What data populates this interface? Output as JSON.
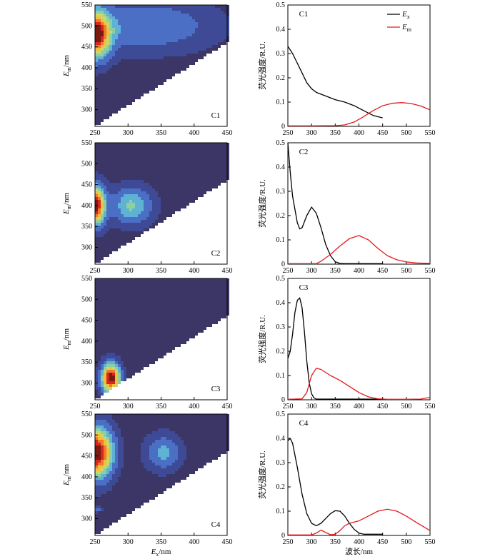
{
  "chart_data": [
    {
      "type": "heatmap",
      "panel": "C1",
      "xlabel": "Ex/nm",
      "ylabel": "Em/nm",
      "xlim": [
        250,
        450
      ],
      "ylim": [
        260,
        550
      ],
      "xticks": [
        250,
        300,
        350,
        400,
        450
      ],
      "yticks": [
        300,
        350,
        400,
        450,
        500,
        550
      ],
      "rayleigh_cutoff": "Em < Ex + 10 (white region)",
      "peaks": [
        {
          "ex": 250,
          "em": 480,
          "level": 1.0,
          "ex_width": 22,
          "em_width": 52
        },
        {
          "ex": 330,
          "em": 500,
          "level": 0.22,
          "ex_width": 90,
          "em_width": 55
        }
      ]
    },
    {
      "type": "line",
      "panel": "C1",
      "xlim": [
        250,
        550
      ],
      "ylim": [
        0,
        0.5
      ],
      "xticks": [
        250,
        300,
        350,
        400,
        450,
        500,
        550
      ],
      "yticks": [
        0,
        0.1,
        0.2,
        0.3,
        0.4,
        0.5
      ],
      "ylabel": "荧光强度/R.U.",
      "legend_position": "top-right",
      "series": [
        {
          "name": "Ex",
          "color": "#000000",
          "x": [
            250,
            260,
            270,
            280,
            290,
            300,
            310,
            330,
            350,
            370,
            390,
            410,
            430,
            450
          ],
          "y": [
            0.33,
            0.3,
            0.26,
            0.22,
            0.18,
            0.155,
            0.14,
            0.125,
            0.11,
            0.1,
            0.085,
            0.065,
            0.045,
            0.035
          ]
        },
        {
          "name": "Em",
          "color": "#e31a1c",
          "x": [
            250,
            300,
            350,
            370,
            390,
            410,
            430,
            450,
            470,
            490,
            510,
            530,
            550
          ],
          "y": [
            0.002,
            0.002,
            0.003,
            0.006,
            0.018,
            0.04,
            0.065,
            0.085,
            0.095,
            0.098,
            0.094,
            0.084,
            0.068
          ]
        }
      ]
    },
    {
      "type": "heatmap",
      "panel": "C2",
      "xlim": [
        250,
        450
      ],
      "ylim": [
        260,
        550
      ],
      "xticks": [
        250,
        300,
        350,
        400,
        450
      ],
      "yticks": [
        300,
        350,
        400,
        450,
        500,
        550
      ],
      "ylabel": "Em/nm",
      "peaks": [
        {
          "ex": 250,
          "em": 400,
          "level": 1.0,
          "ex_width": 14,
          "em_width": 42
        },
        {
          "ex": 305,
          "em": 400,
          "level": 0.36,
          "ex_width": 28,
          "em_width": 40
        }
      ]
    },
    {
      "type": "line",
      "panel": "C2",
      "xlim": [
        250,
        550
      ],
      "ylim": [
        0,
        0.5
      ],
      "xticks": [
        250,
        300,
        350,
        400,
        450,
        500,
        550
      ],
      "yticks": [
        0,
        0.1,
        0.2,
        0.3,
        0.4,
        0.5
      ],
      "ylabel": "荧光强度/R.U.",
      "series": [
        {
          "name": "Ex",
          "color": "#000000",
          "x": [
            250,
            255,
            260,
            270,
            275,
            280,
            290,
            300,
            310,
            320,
            330,
            340,
            350,
            360,
            370,
            380,
            450
          ],
          "y": [
            0.5,
            0.38,
            0.28,
            0.17,
            0.145,
            0.15,
            0.2,
            0.235,
            0.21,
            0.15,
            0.08,
            0.035,
            0.01,
            0.003,
            0.002,
            0.002,
            0.002
          ]
        },
        {
          "name": "Em",
          "color": "#e31a1c",
          "x": [
            250,
            310,
            320,
            340,
            360,
            380,
            400,
            420,
            440,
            460,
            480,
            500,
            520,
            550
          ],
          "y": [
            0.002,
            0.002,
            0.012,
            0.04,
            0.075,
            0.105,
            0.118,
            0.1,
            0.065,
            0.035,
            0.018,
            0.009,
            0.005,
            0.003
          ]
        }
      ]
    },
    {
      "type": "heatmap",
      "panel": "C3",
      "xlim": [
        250,
        450
      ],
      "ylim": [
        260,
        550
      ],
      "xticks": [
        250,
        300,
        350,
        400,
        450
      ],
      "yticks": [
        300,
        350,
        400,
        450,
        500,
        550
      ],
      "ylabel": "Em/nm",
      "peaks": [
        {
          "ex": 274,
          "em": 312,
          "level": 1.0,
          "ex_width": 13,
          "em_width": 32
        }
      ]
    },
    {
      "type": "line",
      "panel": "C3",
      "xlim": [
        250,
        550
      ],
      "ylim": [
        0,
        0.5
      ],
      "xticks": [
        250,
        300,
        350,
        400,
        450,
        500,
        550
      ],
      "yticks": [
        0,
        0.1,
        0.2,
        0.3,
        0.4,
        0.5
      ],
      "ylabel": "荧光强度/R.U.",
      "series": [
        {
          "name": "Ex",
          "color": "#000000",
          "x": [
            250,
            255,
            260,
            265,
            270,
            275,
            280,
            285,
            290,
            295,
            300,
            305,
            310,
            450
          ],
          "y": [
            0.17,
            0.2,
            0.27,
            0.36,
            0.41,
            0.42,
            0.38,
            0.28,
            0.16,
            0.07,
            0.025,
            0.008,
            0.003,
            0.003
          ]
        },
        {
          "name": "Em",
          "color": "#e31a1c",
          "x": [
            250,
            280,
            290,
            300,
            310,
            320,
            340,
            360,
            380,
            400,
            420,
            440,
            460,
            500,
            530,
            550
          ],
          "y": [
            0.002,
            0.004,
            0.03,
            0.1,
            0.13,
            0.125,
            0.1,
            0.08,
            0.055,
            0.03,
            0.012,
            0.004,
            0.002,
            0.002,
            0.003,
            0.01
          ]
        }
      ]
    },
    {
      "type": "heatmap",
      "panel": "C4",
      "xlim": [
        250,
        450
      ],
      "ylim": [
        260,
        550
      ],
      "xticks": [
        250,
        300,
        350,
        400,
        450
      ],
      "yticks": [
        300,
        350,
        400,
        450,
        500,
        550
      ],
      "xlabel": "Ex/nm",
      "ylabel": "Em/nm",
      "peaks": [
        {
          "ex": 253,
          "em": 458,
          "level": 1.0,
          "ex_width": 22,
          "em_width": 55
        },
        {
          "ex": 353,
          "em": 458,
          "level": 0.26,
          "ex_width": 24,
          "em_width": 38
        },
        {
          "ex": 252,
          "em": 322,
          "level": 0.16,
          "ex_width": 10,
          "em_width": 6
        }
      ]
    },
    {
      "type": "line",
      "panel": "C4",
      "xlim": [
        250,
        550
      ],
      "ylim": [
        0,
        0.5
      ],
      "xticks": [
        250,
        300,
        350,
        400,
        450,
        500,
        550
      ],
      "yticks": [
        0,
        0.1,
        0.2,
        0.3,
        0.4,
        0.5
      ],
      "xlabel": "波长/nm",
      "ylabel": "荧光强度/R.U.",
      "series": [
        {
          "name": "Ex",
          "color": "#000000",
          "x": [
            250,
            255,
            260,
            270,
            280,
            290,
            300,
            310,
            320,
            330,
            340,
            350,
            360,
            370,
            380,
            390,
            400,
            410,
            450
          ],
          "y": [
            0.39,
            0.4,
            0.38,
            0.28,
            0.17,
            0.09,
            0.05,
            0.04,
            0.05,
            0.07,
            0.09,
            0.102,
            0.1,
            0.08,
            0.05,
            0.025,
            0.01,
            0.005,
            0.005
          ]
        },
        {
          "name": "Em",
          "color": "#e31a1c",
          "x": [
            250,
            300,
            310,
            320,
            330,
            340,
            350,
            360,
            370,
            380,
            390,
            400,
            420,
            440,
            460,
            480,
            500,
            520,
            550
          ],
          "y": [
            0.002,
            0.002,
            0.01,
            0.022,
            0.012,
            0.003,
            0.005,
            0.02,
            0.04,
            0.05,
            0.055,
            0.06,
            0.08,
            0.1,
            0.108,
            0.1,
            0.08,
            0.055,
            0.02
          ]
        }
      ]
    }
  ],
  "labels": {
    "panels": [
      "C1",
      "C2",
      "C3",
      "C4"
    ],
    "ex_main": "E",
    "ex_sub": "x",
    "ex_unit": "/nm",
    "em_main": "E",
    "em_sub": "m",
    "em_unit": "/nm",
    "legend_ex_main": "E",
    "legend_ex_sub": "x",
    "legend_em_main": "E",
    "legend_em_sub": "m",
    "line_ylabel": "荧光强度/R.U.",
    "line_xlabel": "波长/nm"
  },
  "colors": {
    "contour_levels": [
      "#3b3665",
      "#3e4a96",
      "#4a6fc4",
      "#5eb2d4",
      "#8fcf9f",
      "#c6d870",
      "#f2bf3c",
      "#f07a2a",
      "#d8281d",
      "#7a1a12"
    ],
    "ex_line": "#000000",
    "em_line": "#e31a1c"
  }
}
